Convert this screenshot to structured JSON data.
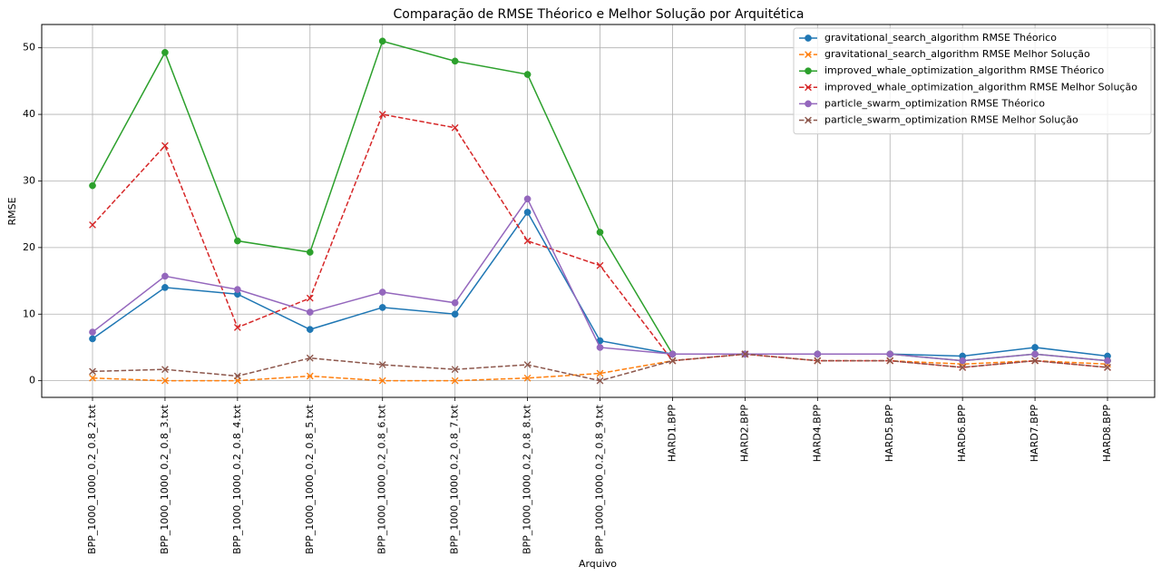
{
  "chart_data": {
    "type": "line",
    "title": "Comparação de RMSE Théorico e Melhor Solução por Arquitética",
    "xlabel": "Arquivo",
    "ylabel": "RMSE",
    "categories": [
      "BPP_1000_1000_0.2_0.8_2.txt",
      "BPP_1000_1000_0.2_0.8_3.txt",
      "BPP_1000_1000_0.2_0.8_4.txt",
      "BPP_1000_1000_0.2_0.8_5.txt",
      "BPP_1000_1000_0.2_0.8_6.txt",
      "BPP_1000_1000_0.2_0.8_7.txt",
      "BPP_1000_1000_0.2_0.8_8.txt",
      "BPP_1000_1000_0.2_0.8_9.txt",
      "HARD1.BPP",
      "HARD2.BPP",
      "HARD4.BPP",
      "HARD5.BPP",
      "HARD6.BPP",
      "HARD7.BPP",
      "HARD8.BPP"
    ],
    "ylim": [
      -2.5,
      53.5
    ],
    "yticks": [
      0,
      10,
      20,
      30,
      40,
      50
    ],
    "grid": true,
    "legend_position": "top-right",
    "series": [
      {
        "name": "gravitational_search_algorithm RMSE Théorico",
        "color": "#1f77b4",
        "dash": "solid",
        "marker": "circle",
        "values": [
          6.3,
          14.0,
          13.0,
          7.7,
          11.0,
          10.0,
          25.3,
          6.0,
          4.0,
          4.0,
          4.0,
          4.0,
          3.7,
          5.0,
          3.7
        ]
      },
      {
        "name": "gravitational_search_algorithm RMSE Melhor Solução",
        "color": "#ff7f0e",
        "dash": "dashed",
        "marker": "x",
        "values": [
          0.4,
          0.0,
          0.0,
          0.7,
          0.0,
          0.0,
          0.4,
          1.1,
          3.0,
          4.0,
          3.0,
          3.0,
          2.5,
          3.0,
          2.5
        ]
      },
      {
        "name": "improved_whale_optimization_algorithm RMSE Théorico",
        "color": "#2ca02c",
        "dash": "solid",
        "marker": "circle",
        "values": [
          29.3,
          49.3,
          21.0,
          19.3,
          51.0,
          48.0,
          46.0,
          22.3,
          4.0,
          4.0,
          4.0,
          4.0,
          3.0,
          4.0,
          3.0
        ]
      },
      {
        "name": "improved_whale_optimization_algorithm RMSE Melhor Solução",
        "color": "#d62728",
        "dash": "dashed",
        "marker": "x",
        "values": [
          23.4,
          35.3,
          8.0,
          12.4,
          40.0,
          38.0,
          21.0,
          17.3,
          3.0,
          4.0,
          3.0,
          3.0,
          2.0,
          3.0,
          2.0
        ]
      },
      {
        "name": "particle_swarm_optimization RMSE Théorico",
        "color": "#9467bd",
        "dash": "solid",
        "marker": "circle",
        "values": [
          7.3,
          15.7,
          13.7,
          10.3,
          13.3,
          11.7,
          27.3,
          5.0,
          4.0,
          4.0,
          4.0,
          4.0,
          3.0,
          4.0,
          3.0
        ]
      },
      {
        "name": "particle_swarm_optimization RMSE Melhor Solução",
        "color": "#8c564b",
        "dash": "dashed",
        "marker": "x",
        "values": [
          1.4,
          1.7,
          0.7,
          3.4,
          2.4,
          1.7,
          2.4,
          0.0,
          3.0,
          4.0,
          3.0,
          3.0,
          2.0,
          3.0,
          2.0
        ]
      }
    ]
  }
}
